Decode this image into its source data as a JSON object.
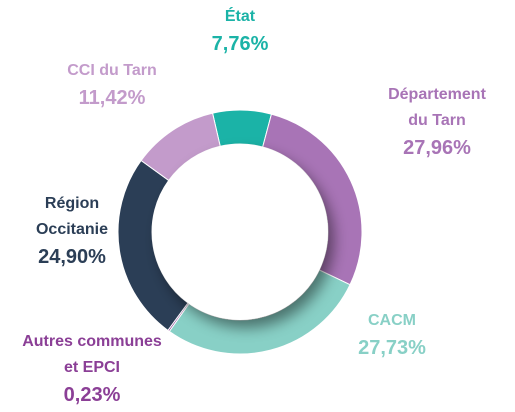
{
  "chart_data": {
    "type": "donut",
    "categories": [
      "État",
      "Département du Tarn",
      "CACM",
      "Autres communes et EPCI",
      "Région Occitanie",
      "CCI du Tarn"
    ],
    "values": [
      7.76,
      27.96,
      27.73,
      0.23,
      24.9,
      11.42
    ],
    "value_labels": [
      "7,76%",
      "27,96%",
      "27,73%",
      "0,23%",
      "24,90%",
      "11,42%"
    ],
    "colors": [
      "#1bb3a7",
      "#a874b6",
      "#88d0c6",
      "#8b3f96",
      "#2b3e56",
      "#c39bcb"
    ],
    "label_colors": [
      "#1bb3a7",
      "#a874b6",
      "#88d0c6",
      "#8b3f96",
      "#2b3e56",
      "#c39bcb"
    ]
  }
}
